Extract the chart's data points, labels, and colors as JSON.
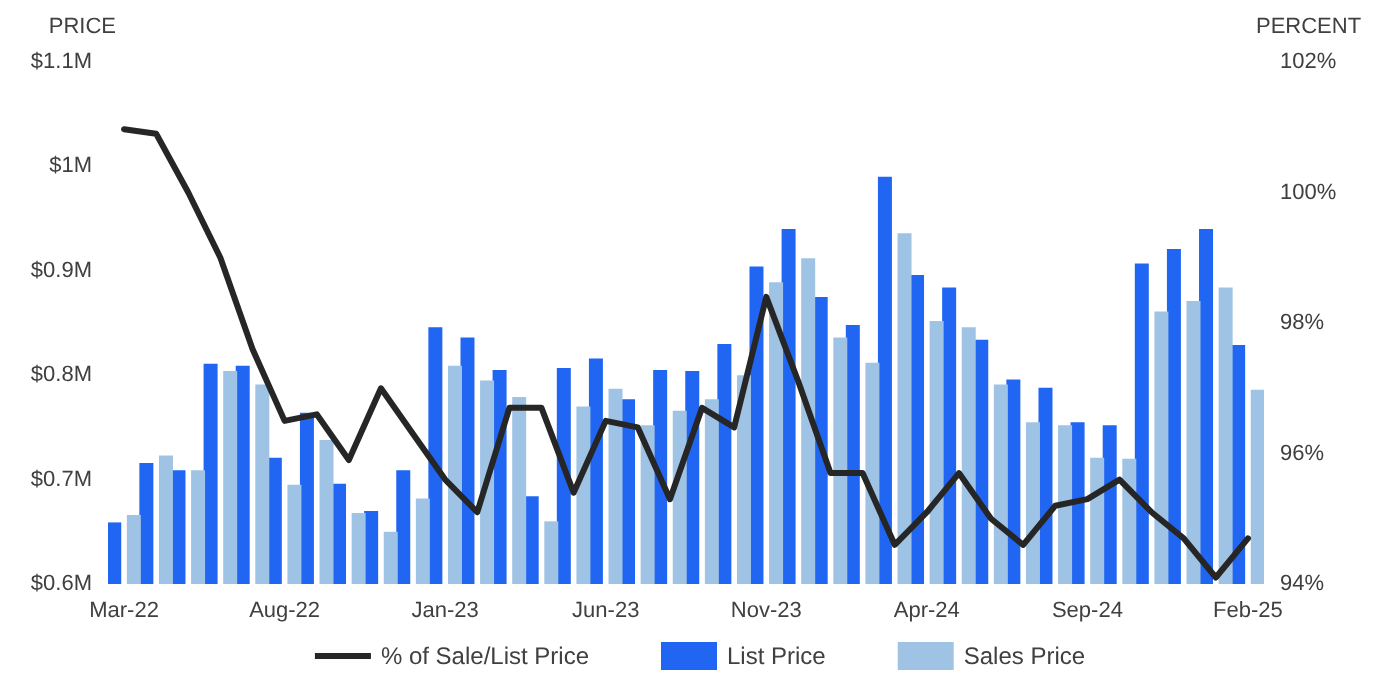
{
  "chart_data": {
    "type": "bar",
    "ylabel": "PRICE",
    "y2label": "PERCENT",
    "categories": [
      "Mar-22",
      null,
      null,
      null,
      null,
      "Aug-22",
      null,
      null,
      null,
      null,
      "Jan-23",
      null,
      null,
      null,
      null,
      "Jun-23",
      null,
      null,
      null,
      null,
      "Nov-23",
      null,
      null,
      null,
      null,
      "Apr-24",
      null,
      null,
      null,
      null,
      "Sep-24",
      null,
      null,
      null,
      null,
      "Feb-25"
    ],
    "series": [
      {
        "name": "% of Sale/List Price",
        "type": "line",
        "axis": "y2",
        "color": "#262626",
        "values": [
          100.97,
          100.9,
          100.0,
          99.0,
          97.6,
          96.5,
          96.6,
          95.9,
          97.0,
          96.3,
          95.6,
          95.1,
          96.7,
          96.7,
          95.4,
          96.5,
          96.4,
          95.3,
          96.7,
          96.4,
          98.4,
          97.1,
          95.7,
          95.7,
          94.6,
          95.1,
          95.7,
          95.0,
          94.6,
          95.2,
          95.3,
          95.6,
          95.1,
          94.7,
          94.1,
          94.7
        ]
      },
      {
        "name": "List Price",
        "color": "#2166f2",
        "values": [
          0.659,
          0.716,
          0.709,
          0.811,
          0.809,
          0.721,
          0.764,
          0.696,
          0.67,
          0.709,
          0.846,
          0.836,
          0.805,
          0.684,
          0.807,
          0.816,
          0.777,
          0.805,
          0.804,
          0.83,
          0.904,
          0.94,
          0.875,
          0.848,
          0.99,
          0.896,
          0.884,
          0.834,
          0.796,
          0.788,
          0.755,
          0.752,
          0.907,
          0.921,
          0.94,
          0.829
        ]
      },
      {
        "name": "Sales Price",
        "color": "#9fc3e5",
        "values": [
          0.666,
          0.723,
          0.709,
          0.804,
          0.791,
          0.695,
          0.738,
          0.668,
          0.65,
          0.682,
          0.809,
          0.795,
          0.779,
          0.66,
          0.77,
          0.787,
          0.752,
          0.766,
          0.777,
          0.8,
          0.889,
          0.912,
          0.836,
          0.812,
          0.936,
          0.852,
          0.846,
          0.791,
          0.755,
          0.752,
          0.721,
          0.72,
          0.861,
          0.871,
          0.884,
          0.786
        ]
      }
    ],
    "ylim": [
      0.6,
      1.1
    ],
    "yticks": [
      {
        "value": 0.6,
        "label": "$0.6M"
      },
      {
        "value": 0.7,
        "label": "$0.7M"
      },
      {
        "value": 0.8,
        "label": "$0.8M"
      },
      {
        "value": 0.9,
        "label": "$0.9M"
      },
      {
        "value": 1.0,
        "label": "$1M"
      },
      {
        "value": 1.1,
        "label": "$1.1M"
      }
    ],
    "y2lim": [
      94,
      102
    ],
    "y2ticks": [
      {
        "value": 94,
        "label": "94%"
      },
      {
        "value": 96,
        "label": "96%"
      },
      {
        "value": 98,
        "label": "98%"
      },
      {
        "value": 100,
        "label": "100%"
      },
      {
        "value": 102,
        "label": "102%"
      }
    ],
    "grid": false,
    "legend": "bottom",
    "marker": "none",
    "line_style": "solid"
  }
}
